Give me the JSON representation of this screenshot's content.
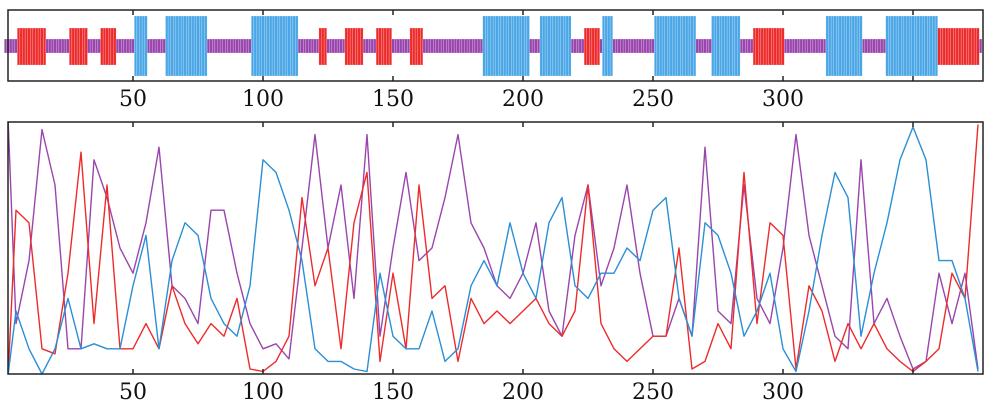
{
  "chart_data": [
    {
      "type": "state-sequence",
      "title": "",
      "xlim": [
        1,
        376
      ],
      "xticks": [
        50,
        100,
        150,
        200,
        250,
        300,
        350
      ],
      "xtick_labels": [
        "50",
        "100",
        "150",
        "200",
        "250",
        "300",
        ""
      ],
      "default_state": "purple",
      "state_colors": {
        "red": "#ee2b2b",
        "purple": "#9a45ad",
        "blue": "#4aa6e6"
      },
      "segments": [
        {
          "state": "red",
          "start": 6,
          "end": 16
        },
        {
          "state": "red",
          "start": 26,
          "end": 32
        },
        {
          "state": "red",
          "start": 38,
          "end": 43
        },
        {
          "state": "blue",
          "start": 51,
          "end": 55
        },
        {
          "state": "blue",
          "start": 63,
          "end": 78
        },
        {
          "state": "blue",
          "start": 96,
          "end": 113
        },
        {
          "state": "red",
          "start": 122,
          "end": 124
        },
        {
          "state": "red",
          "start": 132,
          "end": 138
        },
        {
          "state": "red",
          "start": 144,
          "end": 149
        },
        {
          "state": "red",
          "start": 157,
          "end": 161
        },
        {
          "state": "blue",
          "start": 185,
          "end": 202
        },
        {
          "state": "blue",
          "start": 207,
          "end": 218
        },
        {
          "state": "red",
          "start": 224,
          "end": 229
        },
        {
          "state": "blue",
          "start": 231,
          "end": 234
        },
        {
          "state": "blue",
          "start": 251,
          "end": 266
        },
        {
          "state": "blue",
          "start": 273,
          "end": 283
        },
        {
          "state": "red",
          "start": 289,
          "end": 300
        },
        {
          "state": "blue",
          "start": 317,
          "end": 330
        },
        {
          "state": "blue",
          "start": 340,
          "end": 359
        },
        {
          "state": "red",
          "start": 360,
          "end": 375
        }
      ]
    },
    {
      "type": "line",
      "title": "",
      "xlabel": "",
      "ylabel": "",
      "xlim": [
        1,
        376
      ],
      "ylim": [
        0,
        1
      ],
      "xticks": [
        50,
        100,
        150,
        200,
        250,
        300,
        350
      ],
      "xtick_labels": [
        "50",
        "100",
        "150",
        "200",
        "250",
        "300",
        ""
      ],
      "x": [
        2,
        5,
        10,
        15,
        20,
        25,
        30,
        35,
        40,
        45,
        50,
        55,
        60,
        65,
        70,
        75,
        80,
        85,
        90,
        95,
        100,
        105,
        110,
        115,
        120,
        125,
        130,
        135,
        140,
        145,
        150,
        155,
        160,
        165,
        170,
        175,
        180,
        185,
        190,
        195,
        200,
        205,
        210,
        215,
        220,
        225,
        230,
        235,
        240,
        245,
        250,
        255,
        260,
        265,
        270,
        275,
        280,
        285,
        290,
        295,
        300,
        305,
        310,
        315,
        320,
        325,
        330,
        335,
        340,
        345,
        350,
        355,
        360,
        365,
        370,
        375
      ],
      "series": [
        {
          "name": "purple",
          "color": "#9a45ad",
          "values": [
            1.0,
            0.2,
            0.45,
            0.97,
            0.75,
            0.1,
            0.1,
            0.85,
            0.7,
            0.5,
            0.4,
            0.6,
            0.9,
            0.35,
            0.3,
            0.2,
            0.65,
            0.65,
            0.4,
            0.2,
            0.1,
            0.12,
            0.06,
            0.5,
            0.95,
            0.5,
            0.75,
            0.3,
            0.95,
            0.15,
            0.5,
            0.8,
            0.45,
            0.5,
            0.7,
            0.95,
            0.6,
            0.5,
            0.35,
            0.3,
            0.4,
            0.6,
            0.25,
            0.15,
            0.55,
            0.75,
            0.35,
            0.5,
            0.75,
            0.4,
            0.15,
            0.15,
            0.3,
            0.15,
            0.9,
            0.25,
            0.2,
            0.75,
            0.3,
            0.2,
            0.5,
            0.95,
            0.55,
            0.35,
            0.15,
            0.1,
            0.85,
            0.2,
            0.3,
            0.15,
            0.02,
            0.05,
            0.4,
            0.2,
            0.4,
            0.02
          ]
        },
        {
          "name": "red",
          "color": "#ee2b2b",
          "values": [
            0.0,
            0.65,
            0.6,
            0.1,
            0.08,
            0.4,
            0.88,
            0.2,
            0.75,
            0.1,
            0.1,
            0.2,
            0.1,
            0.35,
            0.2,
            0.12,
            0.2,
            0.15,
            0.3,
            0.02,
            0.01,
            0.05,
            0.15,
            0.7,
            0.35,
            0.5,
            0.1,
            0.6,
            0.8,
            0.05,
            0.4,
            0.1,
            0.75,
            0.3,
            0.35,
            0.05,
            0.3,
            0.2,
            0.25,
            0.2,
            0.25,
            0.3,
            0.2,
            0.15,
            0.25,
            0.75,
            0.2,
            0.1,
            0.05,
            0.1,
            0.15,
            0.15,
            0.5,
            0.02,
            0.05,
            0.2,
            0.1,
            0.8,
            0.2,
            0.6,
            0.55,
            0.02,
            0.35,
            0.25,
            0.05,
            0.2,
            0.1,
            0.2,
            0.1,
            0.05,
            0.01,
            0.05,
            0.1,
            0.4,
            0.3,
            0.99
          ]
        },
        {
          "name": "blue",
          "color": "#2a8fd6",
          "values": [
            0.0,
            0.25,
            0.1,
            0.0,
            0.1,
            0.3,
            0.1,
            0.12,
            0.1,
            0.1,
            0.35,
            0.55,
            0.1,
            0.45,
            0.6,
            0.55,
            0.3,
            0.2,
            0.15,
            0.35,
            0.85,
            0.8,
            0.65,
            0.45,
            0.1,
            0.05,
            0.05,
            0.02,
            0.01,
            0.4,
            0.15,
            0.1,
            0.1,
            0.25,
            0.05,
            0.1,
            0.35,
            0.45,
            0.35,
            0.6,
            0.4,
            0.3,
            0.6,
            0.7,
            0.35,
            0.3,
            0.4,
            0.4,
            0.5,
            0.45,
            0.65,
            0.7,
            0.3,
            0.15,
            0.6,
            0.55,
            0.4,
            0.15,
            0.25,
            0.4,
            0.1,
            0.01,
            0.25,
            0.55,
            0.8,
            0.7,
            0.15,
            0.4,
            0.6,
            0.85,
            0.98,
            0.85,
            0.45,
            0.45,
            0.3,
            0.01
          ]
        }
      ]
    }
  ]
}
